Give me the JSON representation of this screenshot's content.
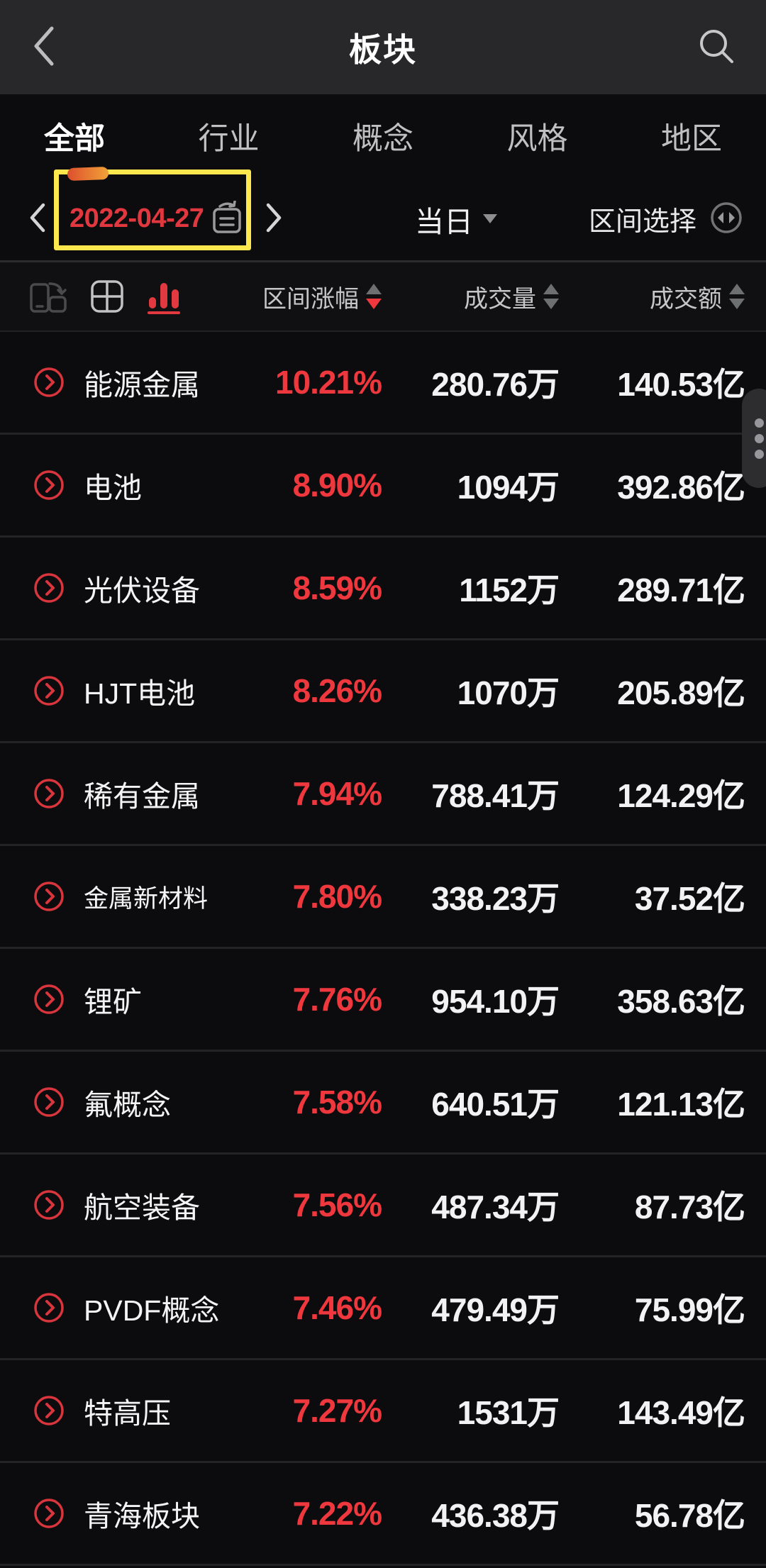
{
  "header": {
    "title": "板块"
  },
  "tabs": [
    {
      "label": "全部",
      "active": true
    },
    {
      "label": "行业",
      "active": false
    },
    {
      "label": "概念",
      "active": false
    },
    {
      "label": "风格",
      "active": false
    },
    {
      "label": "地区",
      "active": false
    }
  ],
  "date_bar": {
    "date": "2022-04-27",
    "period": "当日",
    "range_select": "区间选择"
  },
  "table": {
    "view_icons": [
      "rotate-phone",
      "grid-view",
      "bar-chart"
    ],
    "columns": [
      {
        "label": "区间涨幅",
        "sort": "desc"
      },
      {
        "label": "成交量",
        "sort": "none"
      },
      {
        "label": "成交额",
        "sort": "none"
      }
    ],
    "rows": [
      {
        "name": "能源金属",
        "change": "10.21%",
        "volume": "280.76万",
        "turnover": "140.53亿"
      },
      {
        "name": "电池",
        "change": "8.90%",
        "volume": "1094万",
        "turnover": "392.86亿"
      },
      {
        "name": "光伏设备",
        "change": "8.59%",
        "volume": "1152万",
        "turnover": "289.71亿"
      },
      {
        "name": "HJT电池",
        "change": "8.26%",
        "volume": "1070万",
        "turnover": "205.89亿"
      },
      {
        "name": "稀有金属",
        "change": "7.94%",
        "volume": "788.41万",
        "turnover": "124.29亿"
      },
      {
        "name": "金属新材料",
        "change": "7.80%",
        "volume": "338.23万",
        "turnover": "37.52亿"
      },
      {
        "name": "锂矿",
        "change": "7.76%",
        "volume": "954.10万",
        "turnover": "358.63亿"
      },
      {
        "name": "氟概念",
        "change": "7.58%",
        "volume": "640.51万",
        "turnover": "121.13亿"
      },
      {
        "name": "航空装备",
        "change": "7.56%",
        "volume": "487.34万",
        "turnover": "87.73亿"
      },
      {
        "name": "PVDF概念",
        "change": "7.46%",
        "volume": "479.49万",
        "turnover": "75.99亿"
      },
      {
        "name": "特高压",
        "change": "7.27%",
        "volume": "1531万",
        "turnover": "143.49亿"
      },
      {
        "name": "青海板块",
        "change": "7.22%",
        "volume": "436.38万",
        "turnover": "56.78亿"
      }
    ]
  },
  "annotation": {
    "highlight_color": "#ffe84d",
    "smudge_gradient": [
      "#dd4f2e",
      "#f2a238"
    ]
  },
  "colors": {
    "accent_red": "#ef373e",
    "date_red": "#e1383f",
    "appbar_bg": "#28282a",
    "page_bg": "#0c0c0e",
    "highlight_yellow": "#ffe84d"
  }
}
